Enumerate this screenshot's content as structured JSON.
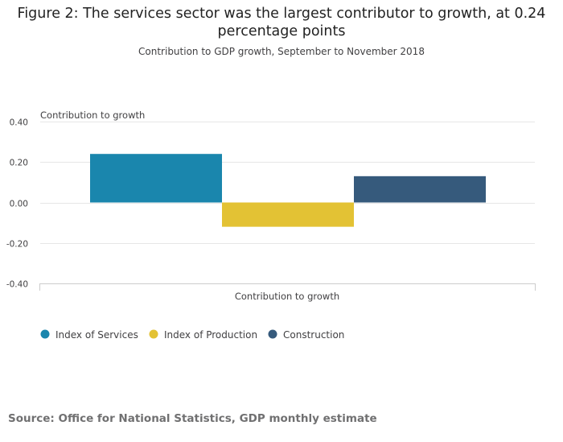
{
  "title": "Figure 2: The services sector was the largest contributor to growth, at 0.24 percentage points",
  "subtitle": "Contribution to GDP growth, September to November 2018",
  "source": {
    "label": "Source:",
    "text": "Office for National Statistics, GDP monthly estimate"
  },
  "chart_data": {
    "type": "bar",
    "categories": [
      "Contribution to growth"
    ],
    "series": [
      {
        "name": "Index of Services",
        "values": [
          0.24
        ],
        "color": "#1a86ad"
      },
      {
        "name": "Index of Production",
        "values": [
          -0.12
        ],
        "color": "#e3c234"
      },
      {
        "name": "Construction",
        "values": [
          0.13
        ],
        "color": "#365a7c"
      }
    ],
    "title": "Figure 2: The services sector was the largest contributor to growth, at 0.24 percentage points",
    "xlabel": "Contribution to growth",
    "ylabel": "Contribution to growth",
    "ylim": [
      -0.4,
      0.4
    ],
    "yticks": [
      "0.40",
      "0.20",
      "0.00",
      "-0.20",
      "-0.40"
    ],
    "yticks_values": [
      0.4,
      0.2,
      0.0,
      -0.2,
      -0.4
    ],
    "grid": true,
    "legend_position": "bottom-left"
  }
}
